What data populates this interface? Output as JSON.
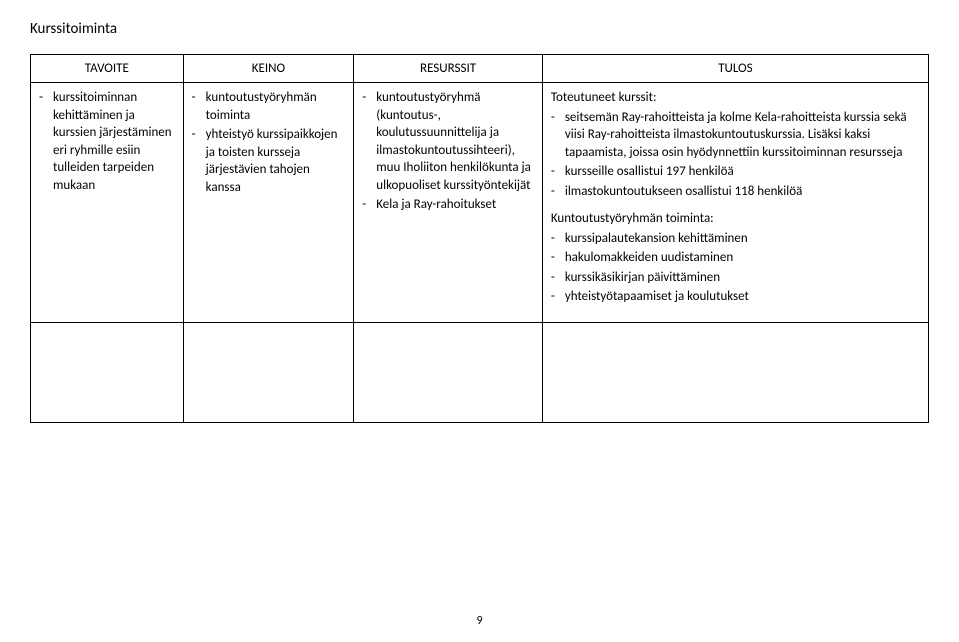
{
  "title": "Kurssitoiminta",
  "headers": [
    "TAVOITE",
    "KEINO",
    "RESURSSIT",
    "TULOS"
  ],
  "tavoite": [
    "kurssitoiminnan kehittäminen ja kurssien järjestäminen eri ryhmille esiin tulleiden tarpeiden mukaan"
  ],
  "keino": [
    "kuntoutustyöryhmän toiminta",
    "yhteistyö kurssipaikkojen ja toisten kursseja järjestävien tahojen kanssa"
  ],
  "resurssit": [
    "kuntoutustyöryhmä (kuntoutus-, koulutussuunnittelija ja ilmastokuntoutussihteeri), muu Iholiiton henkilökunta ja ulkopuoliset kurssityöntekijät",
    "Kela ja Ray-rahoitukset"
  ],
  "tulos": {
    "toteutuneet_label": "Toteutuneet kurssit:",
    "toteutuneet": [
      "seitsemän Ray-rahoitteista ja kolme Kela-rahoitteista kurssia sekä viisi Ray-rahoitteista ilmastokuntoutuskurssia. Lisäksi kaksi tapaamista, joissa osin hyödynnettiin kurssitoiminnan resursseja",
      "kursseille osallistui 197 henkilöä",
      "ilmastokuntoutukseen osallistui 118 henkilöä"
    ],
    "kuntoutus_label": "Kuntoutustyöryhmän toiminta:",
    "kuntoutus": [
      "kurssipalautekansion kehittäminen",
      "hakulomakkeiden uudistaminen",
      "kurssikäsikirjan päivittäminen",
      "yhteistyötapaamiset ja koulutukset"
    ]
  },
  "page_number": "9"
}
